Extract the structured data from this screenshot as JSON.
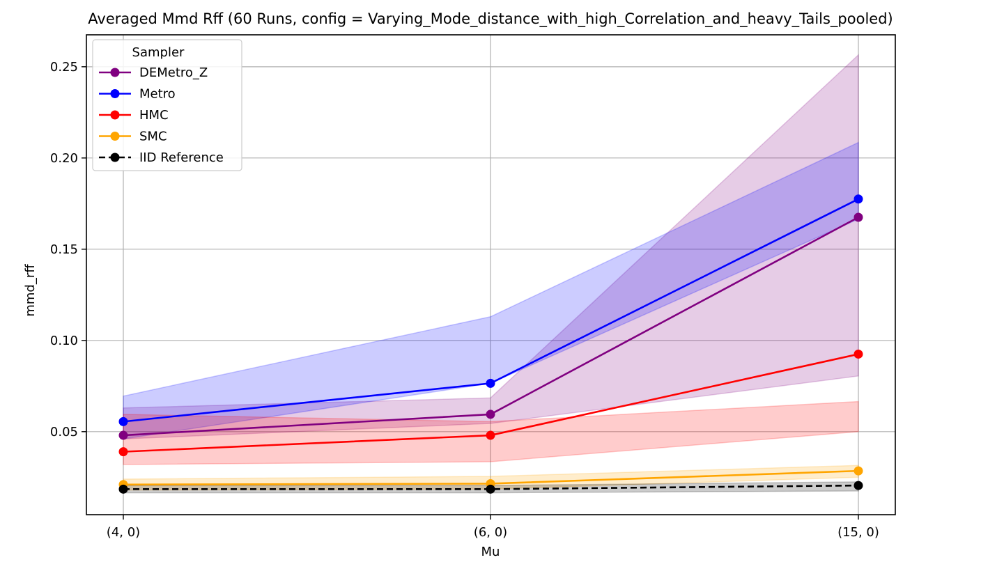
{
  "chart_data": {
    "type": "line",
    "title": "Averaged Mmd Rff (60 Runs, config = Varying_Mode_distance_with_high_Correlation_and_heavy_Tails_pooled)",
    "xlabel": "Mu",
    "ylabel": "mmd_rff",
    "categories": [
      "(4, 0)",
      "(6, 0)",
      "(15, 0)"
    ],
    "ylim": [
      0.0045,
      0.2675
    ],
    "yticks": [
      0.05,
      0.1,
      0.15,
      0.2,
      0.25
    ],
    "ytick_labels": [
      "0.05",
      "0.10",
      "0.15",
      "0.20",
      "0.25"
    ],
    "grid": true,
    "legend": {
      "title": "Sampler",
      "position": "top-left"
    },
    "series": [
      {
        "name": "DEMetro_Z",
        "color": "#800080",
        "dashed": false,
        "values": [
          0.048,
          0.0595,
          0.1675
        ],
        "lower": [
          0.046,
          0.0545,
          0.0805
        ],
        "upper": [
          0.063,
          0.0685,
          0.2565
        ]
      },
      {
        "name": "Metro",
        "color": "#0000ff",
        "dashed": false,
        "values": [
          0.0555,
          0.0765,
          0.1775
        ],
        "lower": [
          0.046,
          0.0765,
          0.1665
        ],
        "upper": [
          0.0695,
          0.113,
          0.2085
        ]
      },
      {
        "name": "HMC",
        "color": "#ff0000",
        "dashed": false,
        "values": [
          0.039,
          0.048,
          0.0925
        ],
        "lower": [
          0.032,
          0.0335,
          0.05
        ],
        "upper": [
          0.0595,
          0.0555,
          0.0665
        ]
      },
      {
        "name": "SMC",
        "color": "#ffa500",
        "dashed": false,
        "values": [
          0.021,
          0.0215,
          0.0285
        ],
        "lower": [
          0.018,
          0.0185,
          0.025
        ],
        "upper": [
          0.024,
          0.0255,
          0.0315
        ]
      },
      {
        "name": "IID Reference",
        "color": "#000000",
        "dashed": true,
        "values": [
          0.0185,
          0.0185,
          0.0205
        ],
        "lower": [
          0.0165,
          0.0165,
          0.0175
        ],
        "upper": [
          0.0205,
          0.0205,
          0.0225
        ]
      }
    ]
  }
}
